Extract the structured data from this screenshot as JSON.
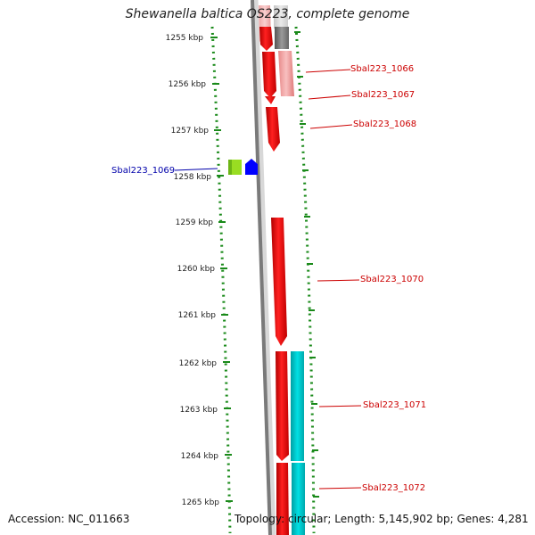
{
  "title": "Shewanella baltica OS223, complete genome",
  "footer": {
    "accession": "Accession: NC_011663",
    "summary": "Topology: circular; Length: 5,145,902 bp; Genes: 4,281"
  },
  "ticks": [
    "1255 kbp",
    "1256 kbp",
    "1257 kbp",
    "1258 kbp",
    "1259 kbp",
    "1260 kbp",
    "1261 kbp",
    "1262 kbp",
    "1263 kbp",
    "1264 kbp",
    "1265 kbp"
  ],
  "genes": [
    {
      "label": "Sbal223_1066",
      "color": "#cc0000"
    },
    {
      "label": "Sbal223_1067",
      "color": "#cc0000"
    },
    {
      "label": "Sbal223_1068",
      "color": "#cc0000"
    },
    {
      "label": "Sbal223_1069",
      "color": "#0000aa"
    },
    {
      "label": "Sbal223_1070",
      "color": "#cc0000"
    },
    {
      "label": "Sbal223_1071",
      "color": "#cc0000"
    },
    {
      "label": "Sbal223_1072",
      "color": "#cc0000"
    }
  ],
  "colors": {
    "forward_feature": "#ff0000",
    "faded_feature": "#f4a0a0",
    "cyan_feature": "#00c8cc",
    "grey_feature": "#777777",
    "green_feature": "#99dd22",
    "blue_feature": "#0000ff",
    "backbone": "#7a7a7a",
    "dotted_track": "#1a8a1a"
  }
}
